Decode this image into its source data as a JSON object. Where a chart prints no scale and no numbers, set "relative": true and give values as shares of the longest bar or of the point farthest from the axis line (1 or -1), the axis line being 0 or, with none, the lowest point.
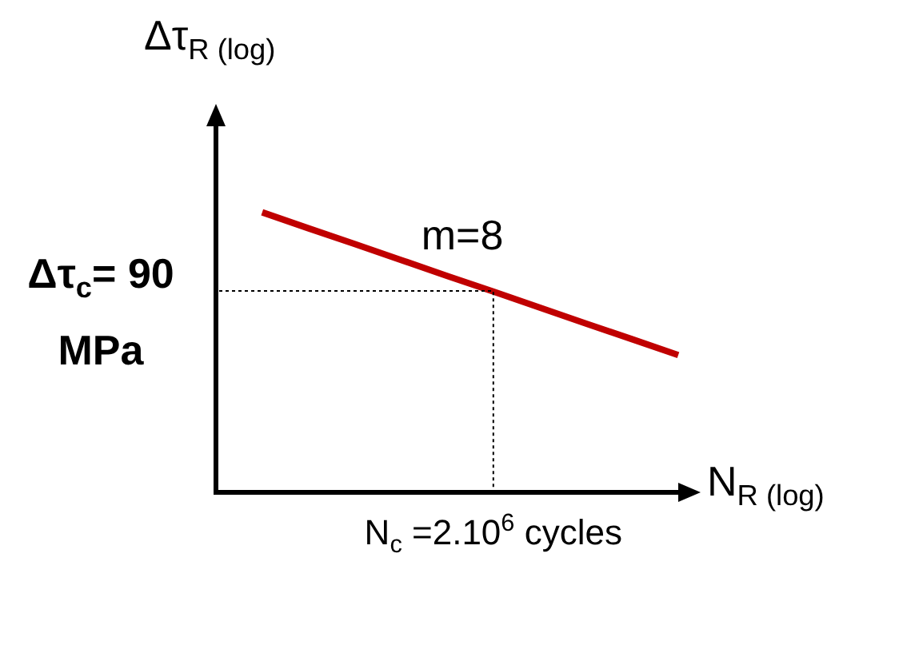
{
  "chart_data": {
    "type": "line",
    "relative": true,
    "ylabel": "Δτ$_{R (log)}$",
    "xlabel": "N$_{R (log)}$",
    "tick_labels": false,
    "grid": false,
    "legend": false,
    "marker": "none",
    "line_style": "solid",
    "categories": [
      null,
      null,
      null,
      null,
      null,
      null,
      null,
      null,
      null,
      null,
      null
    ],
    "series": [
      {
        "color": "#c00000",
        "values": [
          null,
          1,
          0.943,
          0.887,
          0.83,
          0.773,
          0.717,
          0.66,
          0.603,
          0.547,
          0.49
        ]
      }
    ],
    "annotations": [
      "m=8",
      "Δτ$_{c}$= 90 MPa",
      "N$_{c}$ =2.10$^{6}$ cycles"
    ]
  }
}
